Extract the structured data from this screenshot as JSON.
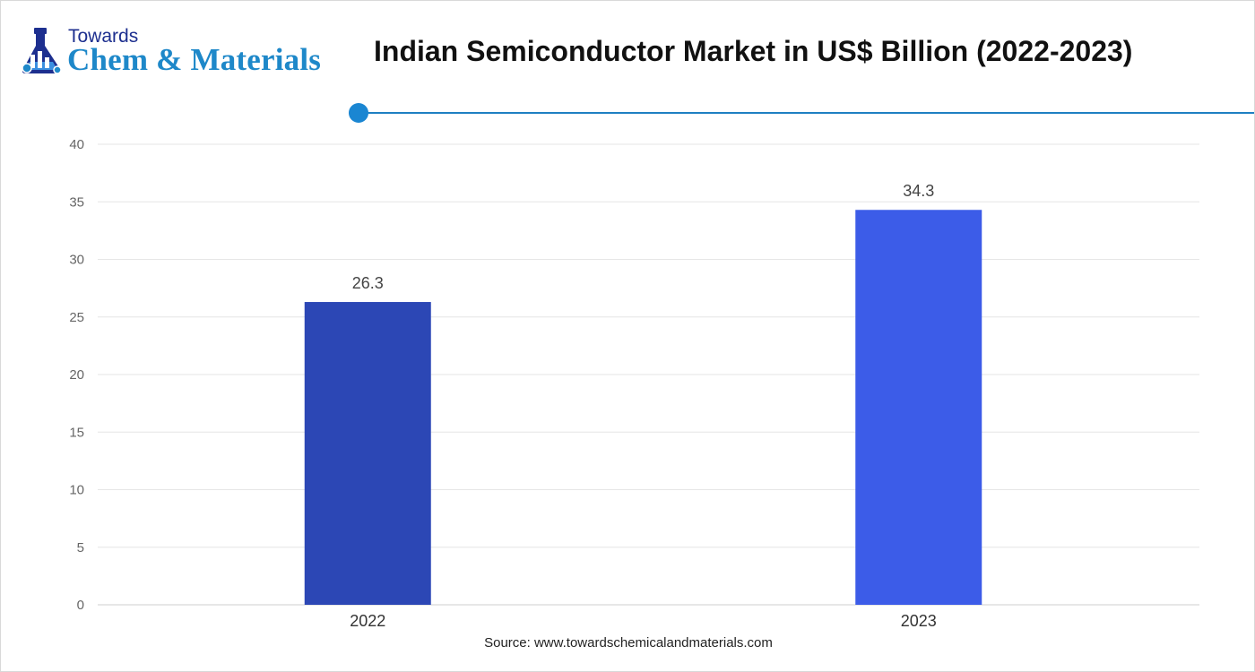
{
  "brand": {
    "top": "Towards",
    "main": "Chem & Materials"
  },
  "source": "Source: www.towardschemicalandmaterials.com",
  "colors": {
    "accent_line": "#1e7fc2",
    "accent_dot": "#1a86d2",
    "grid": "#e6e6e6",
    "axis": "#cfcfcf"
  },
  "chart_data": {
    "type": "bar",
    "title": "Indian Semiconductor Market in US$ Billion (2022-2023)",
    "categories": [
      "2022",
      "2023"
    ],
    "values": [
      26.3,
      34.3
    ],
    "data_labels": [
      "26.3",
      "34.3"
    ],
    "bar_colors": [
      "#2c47b5",
      "#3c5ce8"
    ],
    "ylim": [
      0,
      40
    ],
    "yticks": [
      0,
      5,
      10,
      15,
      20,
      25,
      30,
      35,
      40
    ],
    "grid": true,
    "legend": "none"
  }
}
